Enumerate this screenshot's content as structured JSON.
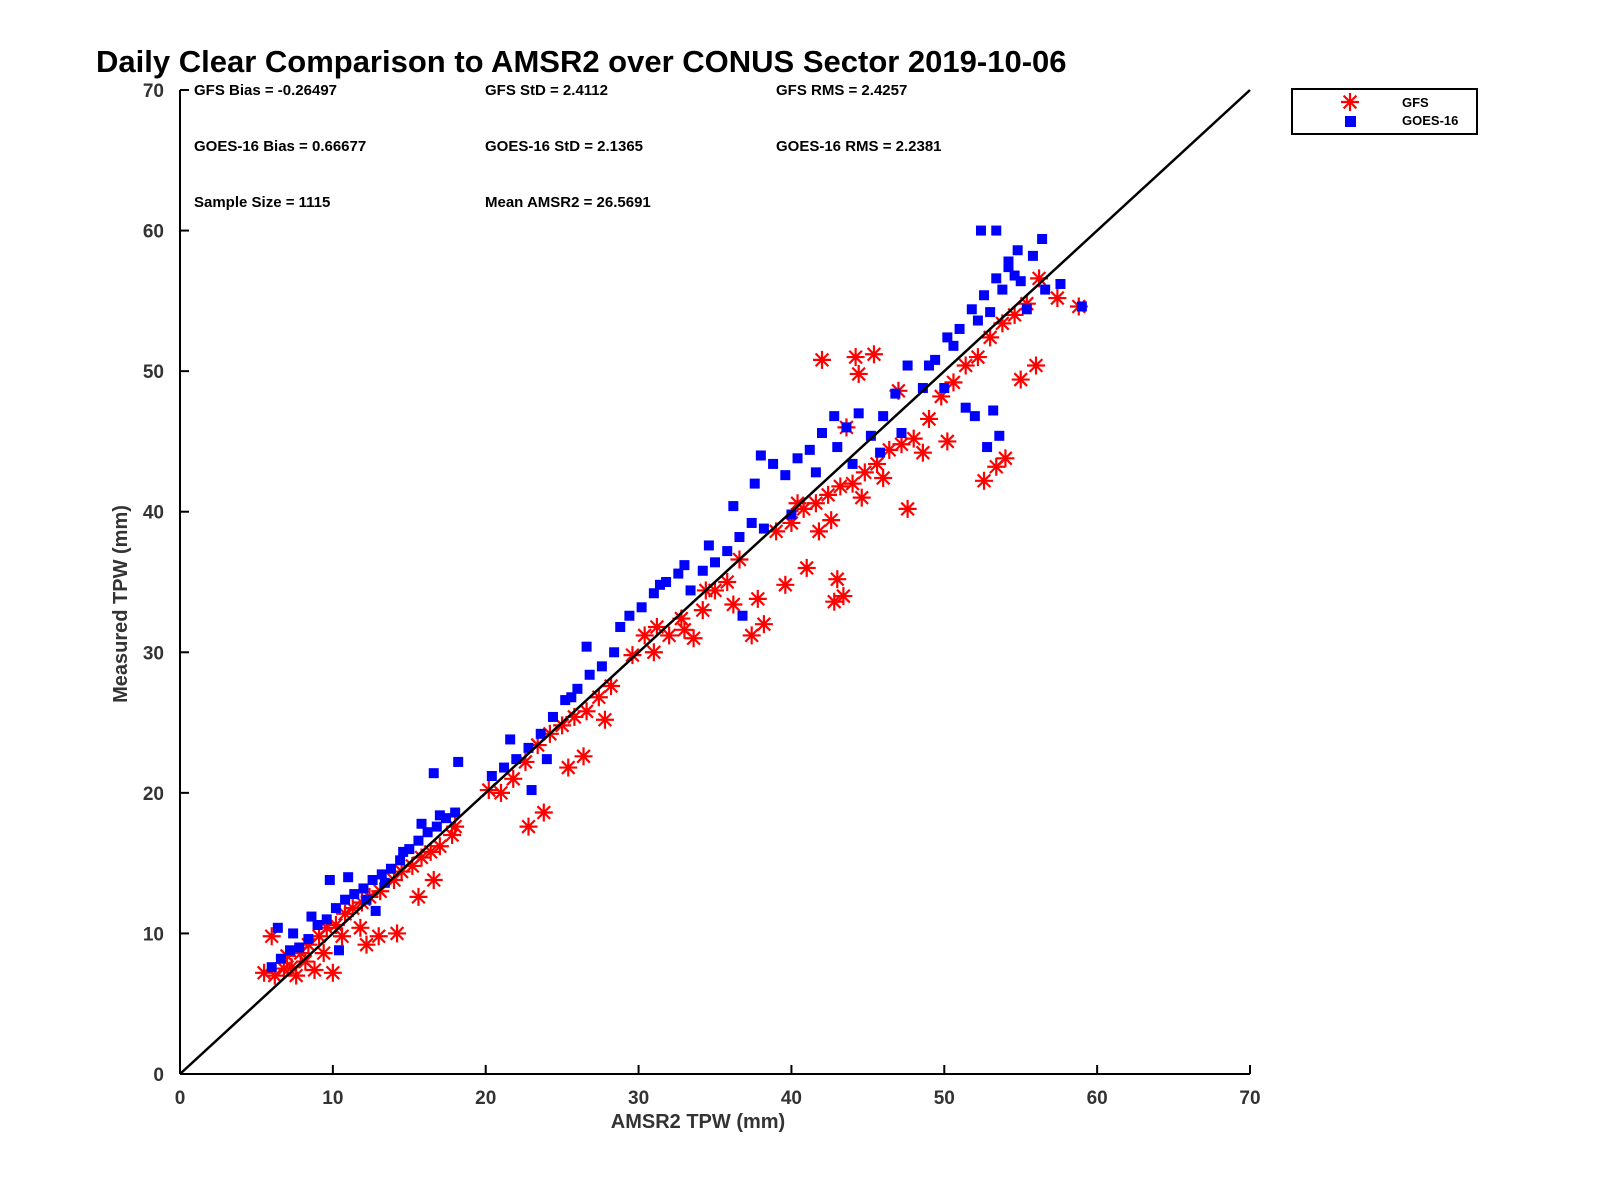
{
  "chart_data": {
    "type": "scatter",
    "title": "Daily Clear Comparison to AMSR2 over CONUS Sector 2019-10-06",
    "xlabel": "AMSR2 TPW (mm)",
    "ylabel": "Measured TPW (mm)",
    "xlim": [
      0,
      70
    ],
    "ylim": [
      0,
      70
    ],
    "xticks": [
      "0",
      "10",
      "20",
      "30",
      "40",
      "50",
      "60",
      "70"
    ],
    "yticks": [
      "0",
      "10",
      "20",
      "30",
      "40",
      "50",
      "60",
      "70"
    ],
    "grid": false,
    "legend_position": "outside-top-right",
    "reference_line": {
      "x": [
        0,
        70
      ],
      "y": [
        0,
        70
      ],
      "color": "#000000"
    },
    "stats": {
      "gfs_bias": "GFS Bias = -0.26497",
      "gfs_std": "GFS StD = 2.4112",
      "gfs_rms": "GFS RMS = 2.4257",
      "goes_bias": "GOES-16 Bias = 0.66677",
      "goes_std": "GOES-16 StD = 2.1365",
      "goes_rms": "GOES-16 RMS = 2.2381",
      "sample_size": "Sample Size = 1115",
      "mean_amsr2": "Mean AMSR2 = 26.5691"
    },
    "series": [
      {
        "name": "GFS",
        "marker": "asterisk",
        "color": "#ff0000",
        "x": [
          5.5,
          6.2,
          6.8,
          7.3,
          7.9,
          8.4,
          9.1,
          9.6,
          10.2,
          10.8,
          11.3,
          11.9,
          12.4,
          13.1,
          14.0,
          14.5,
          15.2,
          15.8,
          16.4,
          17.0,
          17.8,
          18.0,
          6.0,
          7.0,
          8.2,
          9.4,
          10.6,
          11.8,
          13.0,
          14.2,
          15.6,
          16.6,
          8.8,
          10.0,
          12.2,
          7.6,
          20.2,
          21.0,
          21.8,
          22.6,
          23.4,
          24.2,
          25.0,
          25.8,
          26.6,
          27.4,
          28.2,
          22.8,
          23.8,
          25.4,
          26.4,
          27.8,
          29.6,
          30.4,
          31.2,
          32.0,
          32.8,
          33.6,
          34.2,
          35.0,
          35.8,
          36.6,
          37.4,
          38.2,
          31.0,
          33.0,
          34.4,
          36.2,
          37.8,
          39.0,
          40.0,
          40.8,
          41.6,
          42.4,
          43.2,
          44.0,
          44.8,
          45.6,
          46.4,
          47.2,
          48.0,
          39.6,
          41.0,
          42.8,
          43.0,
          43.4,
          44.6,
          46.0,
          47.6,
          40.4,
          42.0,
          44.2,
          45.4,
          49.0,
          49.8,
          50.6,
          51.4,
          52.2,
          53.0,
          53.8,
          54.6,
          55.4,
          56.2,
          48.6,
          50.2,
          52.6,
          53.4,
          54.0,
          55.0,
          56.0,
          57.4,
          58.8,
          41.8,
          42.6,
          43.6,
          44.4,
          47.0
        ],
        "y": [
          7.2,
          7.0,
          7.5,
          7.6,
          8.6,
          9.2,
          9.8,
          10.4,
          10.6,
          11.4,
          11.8,
          12.2,
          12.6,
          13.0,
          13.8,
          14.4,
          14.8,
          15.4,
          15.8,
          16.2,
          17.0,
          17.6,
          9.8,
          8.4,
          8.0,
          8.6,
          9.8,
          10.4,
          9.8,
          10.0,
          12.6,
          13.8,
          7.4,
          7.2,
          9.2,
          7.0,
          20.2,
          20.0,
          21.0,
          22.2,
          23.4,
          24.2,
          24.8,
          25.4,
          25.8,
          26.8,
          27.6,
          17.6,
          18.6,
          21.8,
          22.6,
          25.2,
          29.8,
          31.2,
          31.8,
          31.2,
          32.4,
          31.0,
          33.0,
          34.4,
          35.0,
          36.6,
          31.2,
          32.0,
          30.0,
          31.6,
          34.4,
          33.4,
          33.8,
          38.6,
          39.2,
          40.2,
          40.6,
          41.2,
          41.8,
          42.0,
          42.8,
          43.4,
          44.4,
          44.8,
          45.2,
          34.8,
          36.0,
          33.6,
          35.2,
          34.0,
          41.0,
          42.4,
          40.2,
          40.6,
          50.8,
          51.0,
          51.2,
          46.6,
          48.2,
          49.2,
          50.4,
          51.0,
          52.4,
          53.4,
          54.0,
          54.8,
          56.6,
          44.2,
          45.0,
          42.2,
          43.2,
          43.8,
          49.4,
          50.4,
          55.2,
          54.6,
          38.6,
          39.4,
          46.0,
          49.8,
          48.6
        ]
      },
      {
        "name": "GOES-16",
        "marker": "square",
        "color": "#0000ff",
        "x": [
          6.0,
          6.6,
          7.2,
          7.8,
          8.4,
          9.0,
          9.6,
          10.2,
          10.8,
          11.4,
          12.0,
          12.6,
          13.2,
          13.8,
          14.4,
          15.0,
          15.6,
          16.2,
          16.8,
          17.4,
          18.0,
          6.4,
          7.4,
          8.6,
          9.8,
          11.0,
          12.2,
          13.4,
          14.6,
          15.8,
          17.0,
          10.4,
          12.8,
          16.6,
          18.2,
          20.4,
          21.2,
          22.0,
          22.8,
          23.6,
          24.4,
          25.2,
          26.0,
          26.8,
          27.6,
          28.4,
          21.6,
          23.0,
          24.0,
          25.6,
          26.6,
          28.8,
          29.4,
          30.2,
          31.0,
          31.8,
          32.6,
          33.4,
          34.2,
          35.0,
          35.8,
          36.6,
          37.4,
          38.2,
          31.4,
          33.0,
          34.6,
          36.2,
          37.6,
          38.8,
          39.6,
          40.4,
          41.2,
          42.0,
          42.8,
          43.6,
          44.4,
          45.2,
          46.0,
          46.8,
          47.6,
          36.8,
          38.0,
          40.0,
          41.6,
          43.0,
          44.0,
          45.8,
          47.2,
          48.6,
          49.4,
          50.2,
          51.0,
          51.8,
          52.6,
          53.4,
          54.2,
          55.0,
          55.8,
          56.6,
          49.0,
          50.6,
          52.2,
          53.0,
          53.8,
          54.6,
          55.4,
          56.4,
          57.6,
          59.0,
          52.4,
          53.4,
          54.2,
          54.8,
          53.6,
          52.0,
          51.4,
          50.0,
          52.8,
          53.2
        ],
        "y": [
          7.6,
          8.2,
          8.8,
          9.0,
          9.6,
          10.6,
          11.0,
          11.8,
          12.4,
          12.8,
          13.2,
          13.8,
          14.2,
          14.6,
          15.2,
          16.0,
          16.6,
          17.2,
          17.6,
          18.2,
          18.6,
          10.4,
          10.0,
          11.2,
          13.8,
          14.0,
          12.4,
          13.6,
          15.8,
          17.8,
          18.4,
          8.8,
          11.6,
          21.4,
          22.2,
          21.2,
          21.8,
          22.4,
          23.2,
          24.2,
          25.4,
          26.6,
          27.4,
          28.4,
          29.0,
          30.0,
          23.8,
          20.2,
          22.4,
          26.8,
          30.4,
          31.8,
          32.6,
          33.2,
          34.2,
          35.0,
          35.6,
          34.4,
          35.8,
          36.4,
          37.2,
          38.2,
          39.2,
          38.8,
          34.8,
          36.2,
          37.6,
          40.4,
          42.0,
          43.4,
          42.6,
          43.8,
          44.4,
          45.6,
          46.8,
          46.0,
          47.0,
          45.4,
          46.8,
          48.4,
          50.4,
          32.6,
          44.0,
          39.8,
          42.8,
          44.6,
          43.4,
          44.2,
          45.6,
          48.8,
          50.8,
          52.4,
          53.0,
          54.4,
          55.4,
          56.6,
          57.4,
          56.4,
          58.2,
          55.8,
          50.4,
          51.8,
          53.6,
          54.2,
          55.8,
          56.8,
          54.4,
          59.4,
          56.2,
          54.6,
          60.0,
          60.0,
          57.8,
          58.6,
          45.4,
          46.8,
          47.4,
          48.8,
          44.6,
          47.2
        ]
      }
    ]
  }
}
